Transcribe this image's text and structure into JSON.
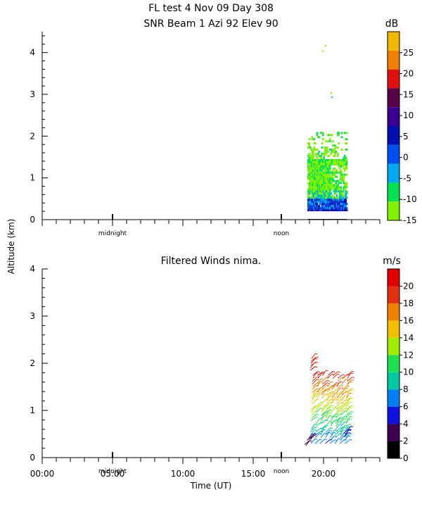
{
  "title_line1": "FL test    4 Nov 09 Day 308",
  "title_line2": "SNR Beam  1 Azi   92 Elev 90",
  "panel2_title": "Filtered Winds nima.",
  "ylabel": "Altitude (km)",
  "xlabel": "Time (UT)",
  "markers": [
    "midnight",
    "noon"
  ],
  "chart_data": [
    {
      "type": "heatmap",
      "title": "SNR Beam  1 Azi   92 Elev 90",
      "xlabel": "Time (UT)",
      "ylabel": "Altitude (km)",
      "xlim": [
        0,
        24
      ],
      "ylim": [
        0,
        4.5
      ],
      "ytick_labels": [
        "0",
        "1",
        "2",
        "3",
        "4"
      ],
      "ytick_values": [
        0,
        1,
        2,
        3,
        4
      ],
      "colorbar": {
        "unit": "dB",
        "tick_labels": [
          "25",
          "20",
          "15",
          "10",
          "5",
          "0",
          "-5",
          "-10",
          "-15"
        ],
        "tick_values": [
          25,
          20,
          15,
          10,
          5,
          0,
          -5,
          -10,
          -15
        ],
        "range": [
          -15,
          30
        ],
        "colors": [
          "#80ef00",
          "#00e050",
          "#00a8f0",
          "#0050f0",
          "#0010b0",
          "#3a0090",
          "#5a0048",
          "#e01010",
          "#f08000",
          "#f0b800"
        ]
      },
      "data_extent": {
        "time": [
          18.9,
          21.6
        ],
        "altitude": [
          0.2,
          2.1
        ]
      }
    },
    {
      "type": "scatter",
      "title": "Filtered Winds nima.",
      "xlabel": "Time (UT)",
      "ylabel": "Altitude (km)",
      "xlim": [
        0,
        24
      ],
      "ylim": [
        0,
        4
      ],
      "ytick_labels": [
        "0",
        "1",
        "2",
        "3",
        "4"
      ],
      "ytick_values": [
        0,
        1,
        2,
        3,
        4
      ],
      "xtick_labels": [
        "00:00",
        "05:00",
        "10:00",
        "15:00",
        "20:00"
      ],
      "xtick_values": [
        0,
        5,
        10,
        15,
        20
      ],
      "colorbar": {
        "unit": "m/s",
        "tick_labels": [
          "20",
          "18",
          "16",
          "14",
          "12",
          "10",
          "8",
          "6",
          "4",
          "2",
          "0"
        ],
        "tick_values": [
          20,
          18,
          16,
          14,
          12,
          10,
          8,
          6,
          4,
          2,
          0
        ],
        "range": [
          0,
          22
        ],
        "colors": [
          "#000000",
          "#400050",
          "#1010e0",
          "#0080f0",
          "#00c8a0",
          "#20e050",
          "#a0ef00",
          "#f0c000",
          "#f08000",
          "#e03010",
          "#e00000"
        ]
      },
      "data_extent": {
        "time": [
          18.6,
          21.6
        ],
        "altitude": [
          0.3,
          2.1
        ]
      }
    }
  ]
}
